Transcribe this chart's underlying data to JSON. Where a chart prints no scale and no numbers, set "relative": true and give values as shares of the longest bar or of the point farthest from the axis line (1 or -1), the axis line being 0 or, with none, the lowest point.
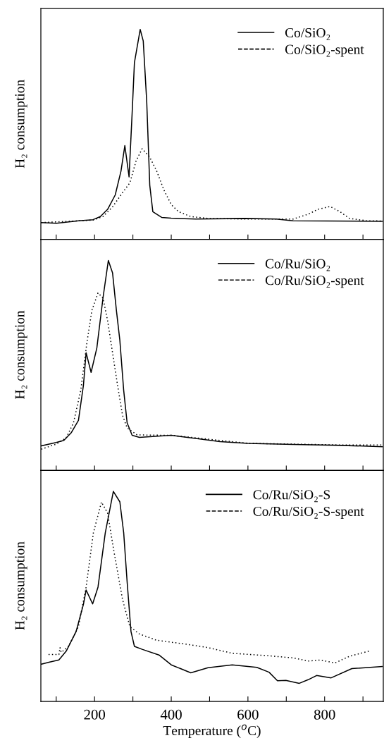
{
  "chart_data": [
    {
      "type": "line",
      "relative": true,
      "ylabel": "H₂ consumption",
      "xlim": [
        60,
        953
      ],
      "xticks": [
        {
          "value": 100,
          "label": null
        },
        200,
        {
          "value": 300,
          "label": null
        },
        400,
        {
          "value": 500,
          "label": null
        },
        600,
        {
          "value": 700,
          "label": null
        },
        800,
        {
          "value": 900,
          "label": null
        }
      ],
      "tick_labels": false,
      "legend": "top right",
      "grid": false,
      "series": [
        {
          "name": "Co/SiO₂",
          "color": "#000000",
          "line_style": "solid",
          "x": [
            61,
            100.6,
            158,
            196,
            215,
            234,
            254,
            269,
            279,
            290,
            298,
            304,
            319,
            327,
            336,
            344,
            352,
            375,
            400,
            464,
            591,
            674,
            718,
            950
          ],
          "values": [
            0.08,
            0.077,
            0.089,
            0.094,
            0.109,
            0.143,
            0.212,
            0.326,
            0.447,
            0.298,
            0.601,
            0.842,
            1.0,
            0.945,
            0.659,
            0.258,
            0.132,
            0.105,
            0.101,
            0.097,
            0.1,
            0.097,
            0.089,
            0.086
          ]
        },
        {
          "name": "Co/SiO₂-spent",
          "color": "#000000",
          "line_style": "dotted",
          "x": [
            61,
            196,
            222,
            247,
            273,
            292,
            308,
            324,
            343,
            362,
            381,
            400,
            419,
            451,
            496,
            591,
            718,
            757,
            782,
            814,
            840,
            865,
            910,
            950
          ],
          "values": [
            0.08,
            0.092,
            0.109,
            0.155,
            0.223,
            0.269,
            0.372,
            0.432,
            0.395,
            0.326,
            0.235,
            0.166,
            0.132,
            0.109,
            0.1,
            0.097,
            0.097,
            0.12,
            0.143,
            0.157,
            0.132,
            0.1,
            0.089,
            0.088
          ]
        }
      ]
    },
    {
      "type": "line",
      "relative": true,
      "ylabel": "H₂ consumption",
      "xlim": [
        60,
        953
      ],
      "xticks": [
        {
          "value": 100,
          "label": null
        },
        200,
        {
          "value": 300,
          "label": null
        },
        400,
        {
          "value": 500,
          "label": null
        },
        600,
        {
          "value": 700,
          "label": null
        },
        800,
        {
          "value": 900,
          "label": null
        }
      ],
      "tick_labels": false,
      "legend": "top right",
      "grid": false,
      "series": [
        {
          "name": "Co/Ru/SiO₂",
          "color": "#000000",
          "line_style": "solid",
          "x": [
            61,
            100,
            120,
            139,
            158,
            171,
            178,
            191,
            206,
            222,
            236,
            247,
            257,
            266,
            276,
            285,
            298,
            317,
            400,
            464,
            527,
            600,
            718,
            846,
            950
          ],
          "values": [
            0.117,
            0.133,
            0.143,
            0.179,
            0.238,
            0.405,
            0.56,
            0.467,
            0.583,
            0.821,
            1.0,
            0.94,
            0.762,
            0.619,
            0.381,
            0.226,
            0.167,
            0.157,
            0.167,
            0.152,
            0.137,
            0.129,
            0.124,
            0.119,
            0.113
          ]
        },
        {
          "name": "Co/Ru/SiO₂-spent",
          "color": "#000000",
          "line_style": "dotted",
          "x": [
            61,
            100,
            126,
            145,
            164,
            180,
            193,
            209,
            222,
            234,
            247,
            260,
            273,
            285,
            311,
            400,
            496,
            600,
            846,
            950
          ],
          "values": [
            0.101,
            0.125,
            0.155,
            0.226,
            0.381,
            0.607,
            0.762,
            0.845,
            0.821,
            0.714,
            0.56,
            0.405,
            0.262,
            0.202,
            0.169,
            0.167,
            0.149,
            0.129,
            0.121,
            0.121
          ]
        }
      ]
    },
    {
      "type": "line",
      "relative": true,
      "ylabel": "H₂ consumption",
      "xlabel": "Temperature ($^{o}$C)",
      "xlim": [
        60,
        953
      ],
      "xticks": [
        {
          "value": 100,
          "label": null
        },
        200,
        {
          "value": 300,
          "label": null
        },
        400,
        {
          "value": 500,
          "label": null
        },
        600,
        {
          "value": 700,
          "label": null
        },
        800,
        {
          "value": 900,
          "label": null
        }
      ],
      "tick_labels": "x",
      "legend": "top right",
      "grid": false,
      "series": [
        {
          "name": "Co/Ru/SiO₂-S",
          "color": "#000000",
          "line_style": "solid",
          "x": [
            61,
            81,
            107,
            126,
            152,
            171,
            178,
            195,
            209,
            228,
            249,
            266,
            276,
            285,
            295,
            304,
            324,
            368,
            400,
            451,
            496,
            559,
            623,
            655,
            677,
            699,
            734,
            757,
            779,
            817,
            871,
            950
          ],
          "values": [
            0.177,
            0.186,
            0.197,
            0.239,
            0.333,
            0.462,
            0.53,
            0.464,
            0.544,
            0.803,
            1.0,
            0.95,
            0.803,
            0.568,
            0.333,
            0.262,
            0.248,
            0.221,
            0.174,
            0.136,
            0.16,
            0.174,
            0.162,
            0.139,
            0.098,
            0.1,
            0.086,
            0.103,
            0.123,
            0.112,
            0.156,
            0.166
          ]
        },
        {
          "name": "Co/Ru/SiO₂-S-spent",
          "color": "#000000",
          "line_style": "dotted",
          "x": [
            80,
            107,
            110,
            113,
            132,
            158,
            178,
            197,
            218,
            234,
            250,
            273,
            292,
            317,
            362,
            432,
            496,
            559,
            655,
            718,
            757,
            789,
            827,
            865,
            919
          ],
          "values": [
            0.223,
            0.223,
            0.256,
            0.233,
            0.262,
            0.356,
            0.544,
            0.803,
            0.949,
            0.897,
            0.72,
            0.485,
            0.356,
            0.321,
            0.291,
            0.274,
            0.256,
            0.229,
            0.217,
            0.207,
            0.192,
            0.197,
            0.183,
            0.215,
            0.241
          ]
        }
      ]
    }
  ]
}
